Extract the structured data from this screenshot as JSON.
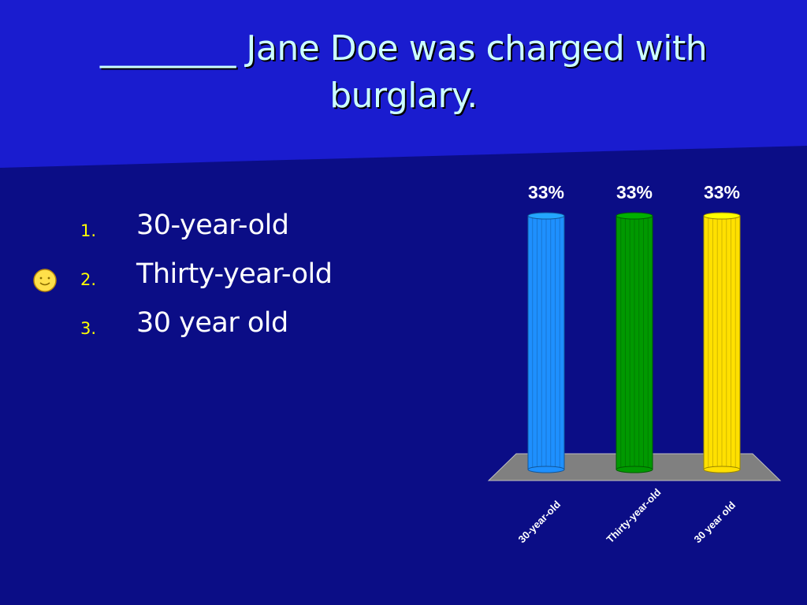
{
  "slide": {
    "title": "________ Jane Doe was charged with burglary.",
    "colors": {
      "background": "#0b0d86",
      "header_band": "#1a1ccf",
      "title_text": "#ccffff",
      "number_text": "#ffff00",
      "answer_text": "#ffffff",
      "chart_floor": "#808080"
    }
  },
  "answers": [
    {
      "number": "1.",
      "text": "30-year-old",
      "correct": false
    },
    {
      "number": "2.",
      "text": "Thirty-year-old",
      "correct": true,
      "marker_icon": "smiley-icon"
    },
    {
      "number": "3.",
      "text": "30 year old",
      "correct": false
    }
  ],
  "chart_data": {
    "type": "bar",
    "categories": [
      "30-year-old",
      "Thirty-year-old",
      "30 year old"
    ],
    "values": [
      33,
      33,
      33
    ],
    "value_labels": [
      "33%",
      "33%",
      "33%"
    ],
    "colors": [
      "#1e90ff",
      "#009900",
      "#ffe000"
    ],
    "ylim": [
      0,
      33
    ],
    "grid": false,
    "title": "",
    "xlabel": "",
    "ylabel": ""
  }
}
